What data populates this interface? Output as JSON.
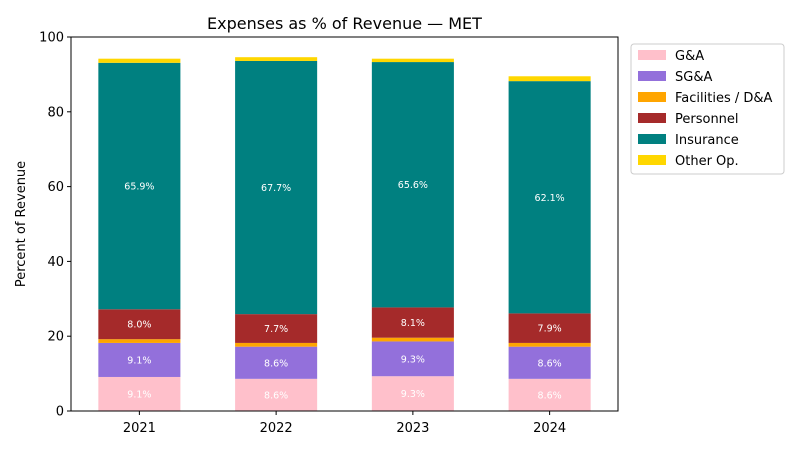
{
  "chart_data": {
    "type": "bar",
    "stacked": true,
    "title": "Expenses as % of Revenue — MET",
    "xlabel": "",
    "ylabel": "Percent of Revenue",
    "ylim": [
      0,
      100
    ],
    "yticks": [
      0,
      20,
      40,
      60,
      80,
      100
    ],
    "categories": [
      "2021",
      "2022",
      "2023",
      "2024"
    ],
    "legend_position": "outside-top-right",
    "series": [
      {
        "name": "G&A",
        "color": "#ffc0cb",
        "values": [
          9.1,
          8.6,
          9.3,
          8.6
        ],
        "labels": [
          "9.1%",
          "8.6%",
          "9.3%",
          "8.6%"
        ]
      },
      {
        "name": "SG&A",
        "color": "#9370db",
        "values": [
          9.1,
          8.6,
          9.3,
          8.6
        ],
        "labels": [
          "9.1%",
          "8.6%",
          "9.3%",
          "8.6%"
        ]
      },
      {
        "name": "Facilities / D&A",
        "color": "#ffa500",
        "values": [
          1.0,
          1.0,
          1.0,
          1.0
        ],
        "labels": [
          "",
          "",
          "",
          ""
        ]
      },
      {
        "name": "Personnel",
        "color": "#a52a2a",
        "values": [
          8.0,
          7.7,
          8.1,
          7.9
        ],
        "labels": [
          "8.0%",
          "7.7%",
          "8.1%",
          "7.9%"
        ]
      },
      {
        "name": "Insurance",
        "color": "#008080",
        "values": [
          65.9,
          67.7,
          65.6,
          62.1
        ],
        "labels": [
          "65.9%",
          "67.7%",
          "65.6%",
          "62.1%"
        ]
      },
      {
        "name": "Other Op.",
        "color": "#ffd700",
        "values": [
          1.1,
          1.0,
          0.9,
          1.3
        ],
        "labels": [
          "",
          "",
          "",
          ""
        ]
      }
    ]
  }
}
